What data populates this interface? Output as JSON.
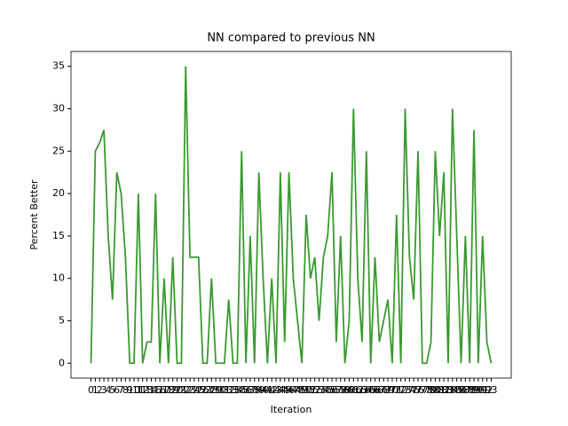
{
  "chart_data": {
    "type": "line",
    "title": "NN compared to previous NN",
    "x_label": "Iteration",
    "y_label": "Percent Better",
    "categories": [
      "0",
      "1",
      "2",
      "3",
      "4",
      "5",
      "6",
      "7",
      "8",
      "9",
      "10",
      "11",
      "12",
      "13",
      "14",
      "15",
      "16",
      "17",
      "18",
      "19",
      "20",
      "21",
      "22",
      "23",
      "24",
      "25",
      "26",
      "27",
      "28",
      "29",
      "30",
      "31",
      "32",
      "33",
      "34",
      "35",
      "36",
      "37",
      "38",
      "39",
      "40",
      "41",
      "42",
      "43",
      "44",
      "45",
      "46",
      "47",
      "48",
      "49",
      "50",
      "51",
      "52",
      "53",
      "54",
      "55",
      "56",
      "57",
      "58",
      "59",
      "60",
      "61",
      "62",
      "63",
      "64",
      "65",
      "66",
      "67",
      "68",
      "69",
      "70",
      "71",
      "72",
      "73",
      "74",
      "75",
      "76",
      "77",
      "78",
      "79",
      "80",
      "81",
      "82",
      "83",
      "84",
      "85",
      "86",
      "87",
      "88",
      "89",
      "90",
      "91",
      "92",
      "93"
    ],
    "series": [
      {
        "color": "#3a9a30",
        "values": [
          0,
          25,
          26,
          27.5,
          15,
          7.5,
          22.5,
          20,
          12.5,
          0,
          0,
          20,
          0,
          2.5,
          2.5,
          20,
          0,
          10,
          0,
          12.5,
          0,
          0,
          35,
          12.5,
          12.5,
          12.5,
          0,
          0,
          10,
          0,
          0,
          0,
          7.5,
          0,
          0,
          25,
          0,
          15,
          0,
          22.5,
          10,
          0,
          10,
          0,
          22.5,
          2.5,
          22.5,
          10,
          5,
          0,
          17.5,
          10,
          12.5,
          5,
          12.5,
          15,
          22.5,
          2.5,
          15,
          0,
          5,
          30,
          10,
          2.5,
          25,
          0,
          12.5,
          2.5,
          5,
          7.5,
          0,
          17.5,
          0,
          30,
          12.5,
          7.5,
          25,
          0,
          0,
          2.5,
          25,
          15,
          22.5,
          0,
          30,
          15,
          0,
          15,
          0,
          27.5,
          0,
          15,
          2.5,
          0
        ]
      }
    ],
    "ylim": [
      -1.75,
      36.75
    ],
    "yticks": [
      0,
      5,
      10,
      15,
      20,
      25,
      30,
      35
    ]
  }
}
